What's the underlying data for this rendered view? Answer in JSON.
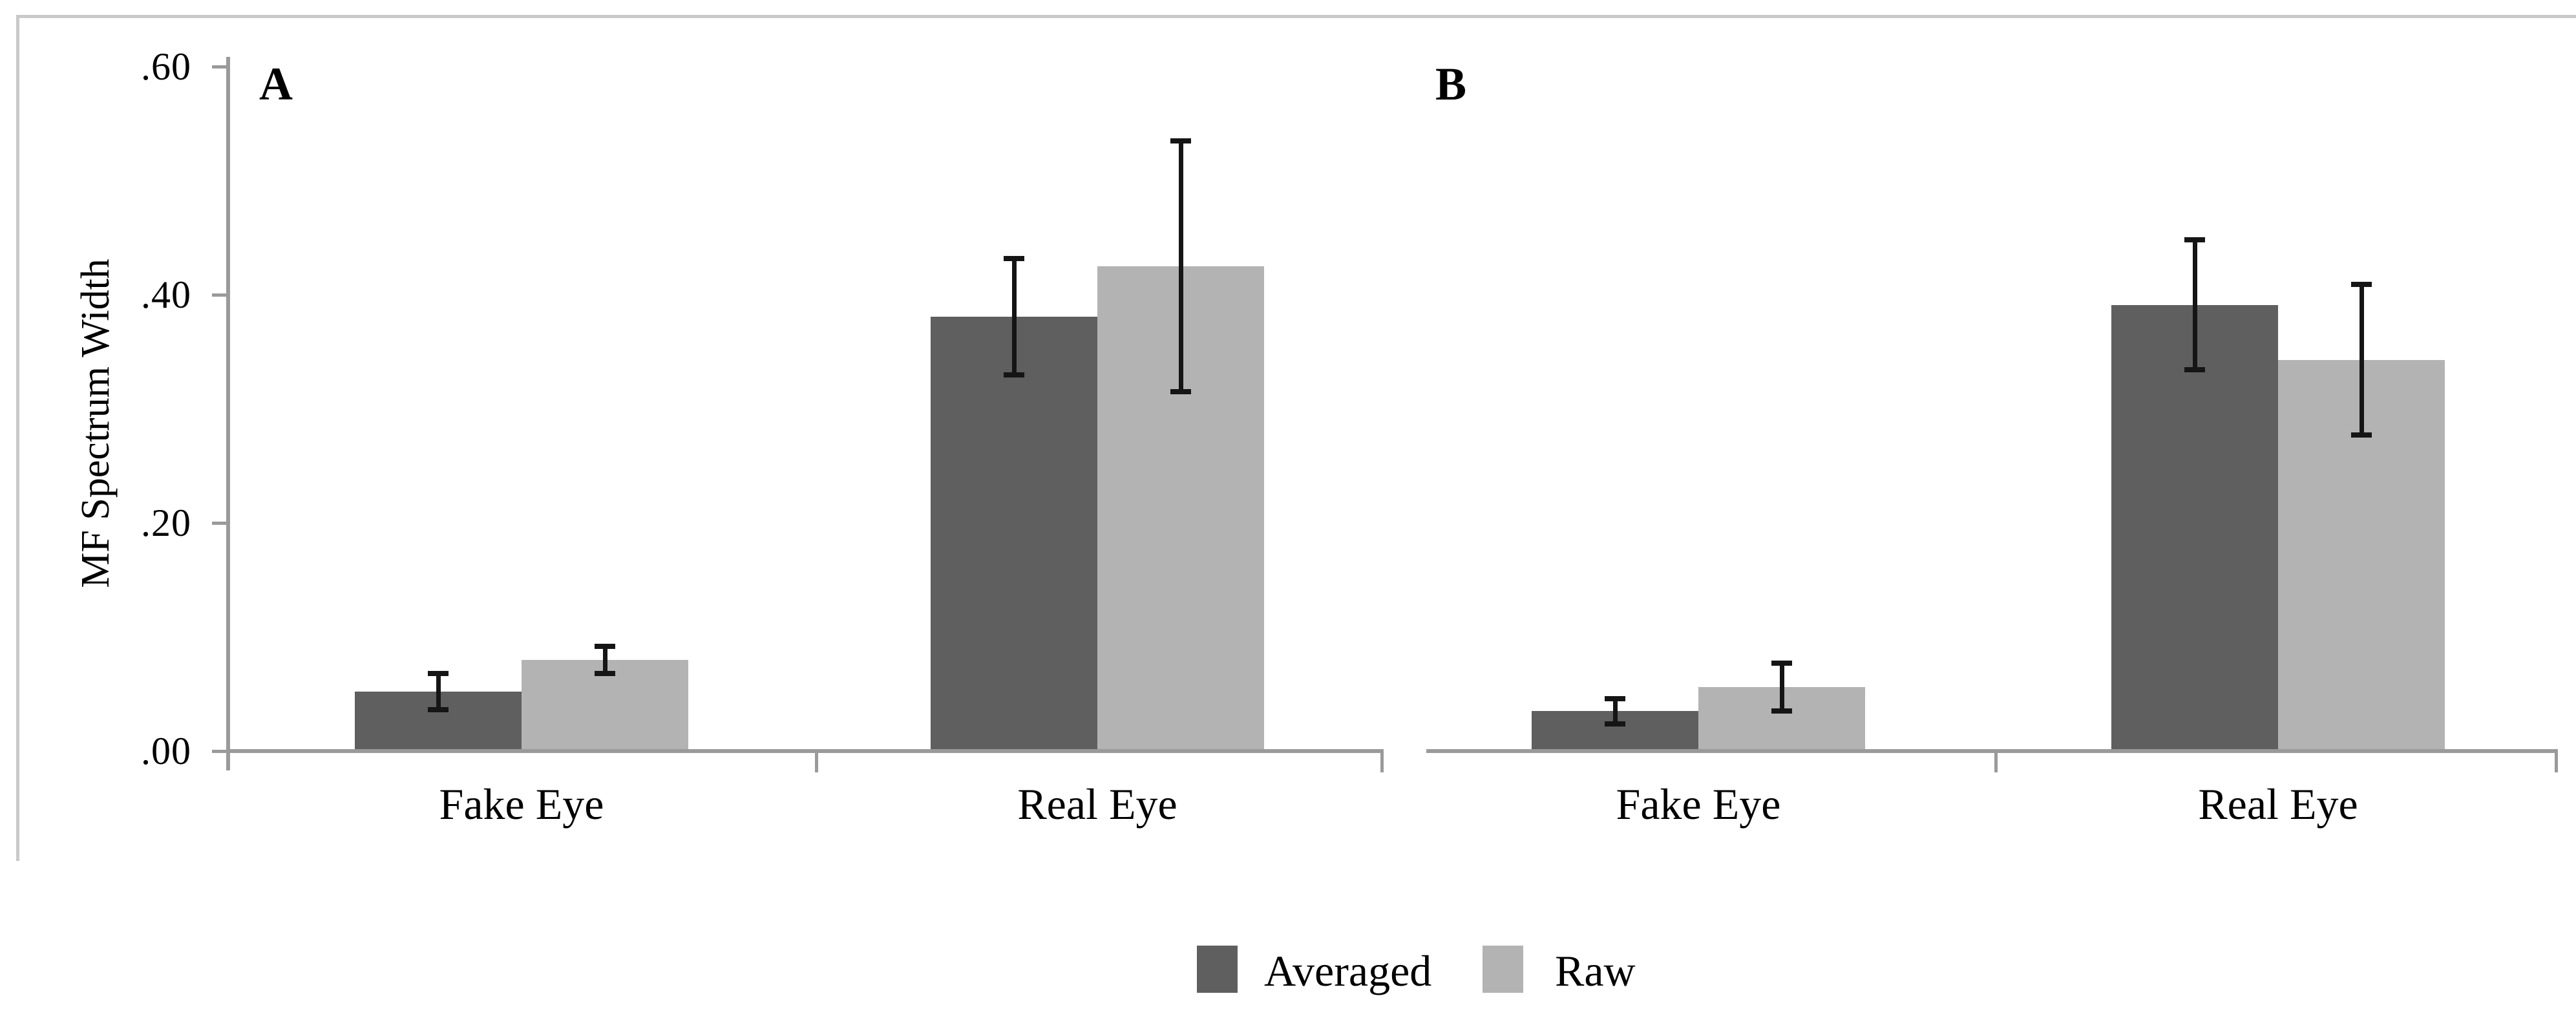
{
  "chart_data": {
    "type": "bar",
    "title": "",
    "ylabel": "MF Spectrum Width",
    "xlabel": "",
    "ylim": [
      0,
      0.6
    ],
    "yticks": [
      ".00",
      ".20",
      ".40",
      ".60"
    ],
    "ytick_values": [
      0.0,
      0.2,
      0.4,
      0.6
    ],
    "grid": false,
    "legend": [
      "Averaged",
      "Raw"
    ],
    "legend_position": "bottom-center",
    "panels": [
      {
        "label": "A",
        "categories": [
          "Fake Eye",
          "Real Eye"
        ],
        "series": [
          {
            "name": "Averaged",
            "values": [
              0.052,
              0.381
            ],
            "errors": [
              0.016,
              0.051
            ]
          },
          {
            "name": "Raw",
            "values": [
              0.08,
              0.425
            ],
            "errors": [
              0.012,
              0.11
            ]
          }
        ]
      },
      {
        "label": "B",
        "categories": [
          "Fake Eye",
          "Real Eye"
        ],
        "series": [
          {
            "name": "Averaged",
            "values": [
              0.035,
              0.391
            ],
            "errors": [
              0.011,
              0.057
            ]
          },
          {
            "name": "Raw",
            "values": [
              0.056,
              0.343
            ],
            "errors": [
              0.021,
              0.066
            ]
          }
        ]
      }
    ],
    "colors": {
      "averaged": "#5f5f5f",
      "raw": "#b3b3b3",
      "axis": "#9a9a9a",
      "frame": "#c9c9c9",
      "error_bar": "#151515",
      "text": "#000000",
      "background": "#ffffff"
    }
  }
}
